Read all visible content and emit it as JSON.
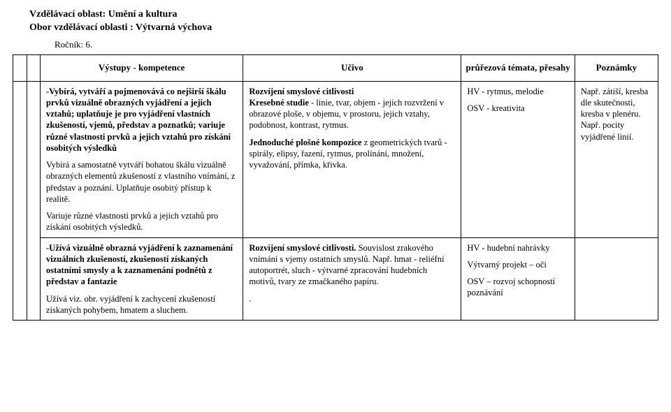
{
  "header": {
    "line1": "Vzdělávací oblast: Umění a kultura",
    "line2": "Obor vzdělávací oblasti : Výtvarná výchova",
    "grade": "Ročník: 6."
  },
  "columns": {
    "c1": "Výstupy - kompetence",
    "c2": "Učivo",
    "c3": "průřezová témata, přesahy",
    "c4": "Poznámky"
  },
  "row1": {
    "c1": {
      "p1_lead": "-Vybírá, vytváří a pojmenovává co nejširší škálu prvků vizuálně obrazných vyjádření a jejich vztahů; uplatňuje je pro vyjádření vlastních zkušeností, vjemů, představ a poznatků; variuje různé vlastnosti prvků a jejich vztahů pro získání osobitých výsledků",
      "p2": "Vybírá a samostatně vytváří bohatou škálu vizuálně obrazných elementů zkušeností z vlastního vnímání, z představ a poznání. Uplatňuje osobitý přístup k realitě.",
      "p3": "Variuje různé vlastnosti prvků a jejich vztahů pro získání osobitých výsledků."
    },
    "c2": {
      "p1_b1": "Rozvíjení smyslové citlivosti",
      "p1_b2": "Kresebné studie",
      "p1_rest": " - linie, tvar, objem - jejich rozvržení v obrazové ploše, v objemu, v prostoru, jejich vztahy, podobnost, kontrast, rytmus.",
      "p2_b": "Jednoduché plošné kompozice",
      "p2_rest": " z geometrických tvarů - spirály, elipsy, řazení, rytmus, prolínání, množení, vyvažování, přímka, křivka."
    },
    "c3": {
      "p1": "HV - rytmus, melodie",
      "p2": "OSV - kreativita"
    },
    "c4": {
      "p1": "Např. zátiší, kresba dle skutečnosti, kresba v plenéru. Např. pocity vyjádřené linií."
    }
  },
  "row2": {
    "c1": {
      "p1_b": "-Užívá vizuálně obrazná vyjádření k zaznamenání vizuálních zkušeností, zkušeností získaných ostatními smysly a k zaznamenání podnětů z představ a fantazie",
      "p2": "Užívá viz. obr. vyjádření  k zachycení zkušeností získaných pohybem, hmatem a sluchem."
    },
    "c2": {
      "p1_b": "Rozvíjení smyslové citlivosti.",
      "p1_rest": " Souvislost zrakového vnímání s vjemy ostatních smyslů. Např. hmat - reliéfní autoportrét, sluch - výtvarné zpracování hudebních motivů, tvary ze zmačkaného papíru.",
      "dot": "."
    },
    "c3": {
      "p1": "HV - hudební nahrávky",
      "p2": "Výtvarný projekt – oči",
      "p3": "OSV – rozvoj schopností poznávání"
    }
  }
}
